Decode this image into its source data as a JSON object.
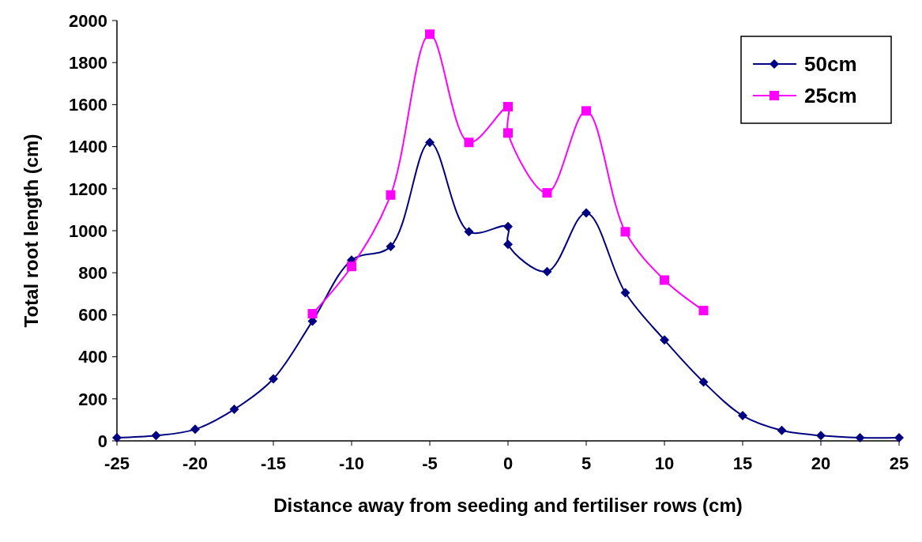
{
  "chart_data": {
    "type": "line",
    "xlabel": "Distance away from seeding and fertiliser rows (cm)",
    "ylabel": "Total root length (cm)",
    "xlim": [
      -25,
      25
    ],
    "xticks": [
      -25,
      -20,
      -15,
      -10,
      -5,
      0,
      5,
      10,
      15,
      20,
      25
    ],
    "ylim": [
      0,
      2000
    ],
    "yticks": [
      0,
      200,
      400,
      600,
      800,
      1000,
      1200,
      1400,
      1600,
      1800,
      2000
    ],
    "grid": false,
    "legend": "top right",
    "line_style": "solid",
    "series": [
      {
        "name": "50cm",
        "color": "#000080",
        "marker": "diamond",
        "x": [
          -25,
          -22.5,
          -20,
          -17.5,
          -15,
          -12.5,
          -10,
          -7.5,
          -5,
          -2.5,
          0,
          0,
          2.5,
          5,
          7.5,
          10,
          12.5,
          15,
          17.5,
          20,
          22.5,
          25
        ],
        "values": [
          15,
          25,
          55,
          150,
          295,
          570,
          860,
          925,
          1420,
          995,
          1020,
          935,
          805,
          1085,
          705,
          480,
          280,
          120,
          50,
          25,
          15,
          15
        ]
      },
      {
        "name": "25cm",
        "color": "#ff00ff",
        "marker": "square",
        "x": [
          -12.5,
          -10,
          -7.5,
          -5,
          -2.5,
          0,
          0,
          2.5,
          5,
          7.5,
          10,
          12.5
        ],
        "values": [
          605,
          830,
          1170,
          1935,
          1420,
          1590,
          1465,
          1180,
          1570,
          995,
          765,
          620
        ]
      }
    ]
  }
}
